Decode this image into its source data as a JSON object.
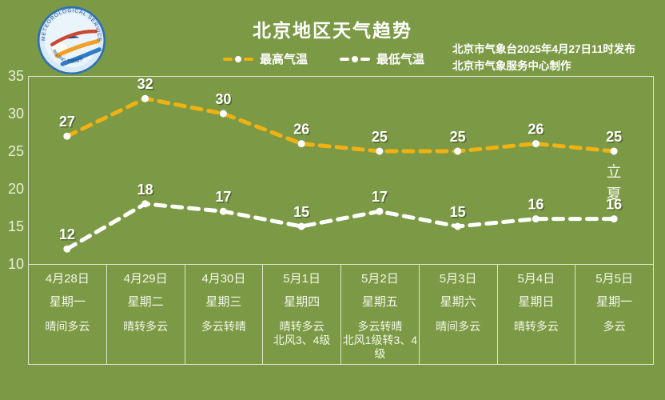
{
  "header": {
    "title": "北京地区天气趋势",
    "issued_line1": "北京市气象台2025年4月27日11时发布",
    "issued_line2": "北京市气象服务中心制作",
    "logo": {
      "arc_top": "METEOROLOGICAL SERVICE",
      "arc_bottom": "BEIJING 气象服务"
    }
  },
  "legend": [
    {
      "label": "最高气温",
      "color": "#f0b112"
    },
    {
      "label": "最低气温",
      "color": "#ffffff"
    }
  ],
  "chart_data": {
    "type": "line",
    "x": [
      "4月28日",
      "4月29日",
      "4月30日",
      "5月1日",
      "5月2日",
      "5月3日",
      "5月4日",
      "5月5日"
    ],
    "series": [
      {
        "name": "最高气温",
        "values": [
          27,
          32,
          30,
          26,
          25,
          25,
          26,
          25
        ],
        "color": "#f0b112",
        "style": "dashed"
      },
      {
        "name": "最低气温",
        "values": [
          12,
          18,
          17,
          15,
          17,
          15,
          16,
          16
        ],
        "color": "#ffffff",
        "style": "dashed"
      }
    ],
    "ylim": [
      10,
      35
    ],
    "yticks": [
      35,
      30,
      25,
      20,
      15,
      10
    ],
    "grid": false,
    "legend_position": "top-center",
    "annotation": {
      "text": "立夏",
      "x_index": 7,
      "series": "最高气温",
      "orientation": "vertical"
    }
  },
  "table": {
    "columns": [
      {
        "date": "4月28日",
        "weekday": "星期一",
        "weather": "晴间多云",
        "wind": ""
      },
      {
        "date": "4月29日",
        "weekday": "星期二",
        "weather": "晴转多云",
        "wind": ""
      },
      {
        "date": "4月30日",
        "weekday": "星期三",
        "weather": "多云转晴",
        "wind": ""
      },
      {
        "date": "5月1日",
        "weekday": "星期四",
        "weather": "晴转多云",
        "wind": "北风3、4级"
      },
      {
        "date": "5月2日",
        "weekday": "星期五",
        "weather": "多云转晴",
        "wind": "北风1级转3、4级"
      },
      {
        "date": "5月3日",
        "weekday": "星期六",
        "weather": "晴间多云",
        "wind": ""
      },
      {
        "date": "5月4日",
        "weekday": "星期日",
        "weather": "晴转多云",
        "wind": ""
      },
      {
        "date": "5月5日",
        "weekday": "星期一",
        "weather": "多云",
        "wind": ""
      }
    ]
  },
  "colors": {
    "background": "#7c9a46",
    "max_line": "#f0b112",
    "min_line": "#ffffff",
    "point": "#ffffff",
    "text": "#ffffff",
    "tick_text": "#e9efda",
    "grid_line": "#dde7c8",
    "label_shadow": "rgba(45,60,20,0.55)"
  }
}
